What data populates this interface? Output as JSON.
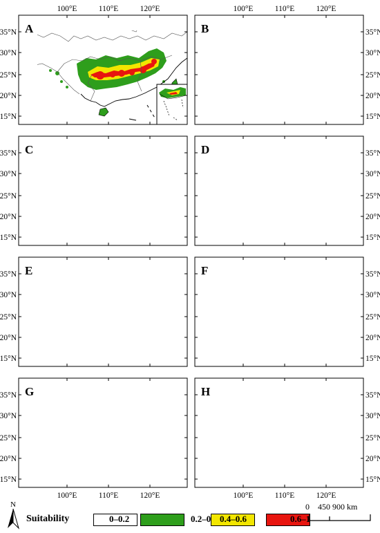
{
  "panels": [
    {
      "id": "A",
      "label": "A"
    },
    {
      "id": "B",
      "label": "B"
    },
    {
      "id": "C",
      "label": "C"
    },
    {
      "id": "D",
      "label": "D"
    },
    {
      "id": "E",
      "label": "E"
    },
    {
      "id": "F",
      "label": "F"
    },
    {
      "id": "G",
      "label": "G"
    },
    {
      "id": "H",
      "label": "H"
    }
  ],
  "axes": {
    "lon_ticks": [
      "100°E",
      "110°E",
      "120°E"
    ],
    "lat_ticks": [
      "35°N",
      "30°N",
      "25°N",
      "20°N",
      "15°N"
    ]
  },
  "legend": {
    "title": "Suitability",
    "north_label": "N",
    "classes": [
      {
        "label": "0–0.2",
        "color": "#ffffff"
      },
      {
        "label": "0.2–0.4",
        "color": "#2e9e1c"
      },
      {
        "label": "0.4–0.6",
        "color": "#f2e600"
      },
      {
        "label": "0.6–1",
        "color": "#e8150f"
      }
    ],
    "scale": {
      "labels": [
        "0",
        "450",
        "900"
      ],
      "unit": "km"
    }
  }
}
